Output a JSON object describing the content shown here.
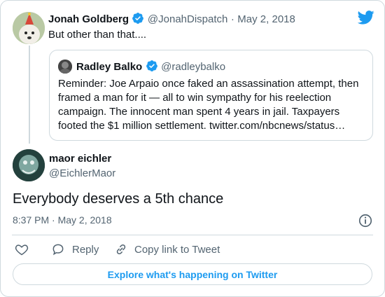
{
  "reply_to": {
    "name": "Jonah Goldberg",
    "handle": "@JonahDispatch",
    "separator": "·",
    "date": "May 2, 2018",
    "text": "But other than that...."
  },
  "quoted": {
    "name": "Radley Balko",
    "handle": "@radleybalko",
    "text": "Reminder: Joe Arpaio once faked an assassination attempt, then framed a man for it — all to win sympathy for his reelection campaign. The innocent man spent 4 years in jail. Taxpayers footed the $1 million settlement. twitter.com/nbcnews/status…"
  },
  "tweet": {
    "name": "maor eichler",
    "handle": "@EichlerMaor",
    "text": "Everybody deserves a 5th chance",
    "time": "8:37 PM · May 2, 2018"
  },
  "actions": {
    "reply_label": "Reply",
    "copy_link_label": "Copy link to Tweet"
  },
  "explore_label": "Explore what's happening on Twitter",
  "colors": {
    "accent": "#1d9bf0",
    "verified": "#1d9bf0",
    "text": "#0f1419",
    "muted": "#536471",
    "border": "#cfd9de"
  }
}
